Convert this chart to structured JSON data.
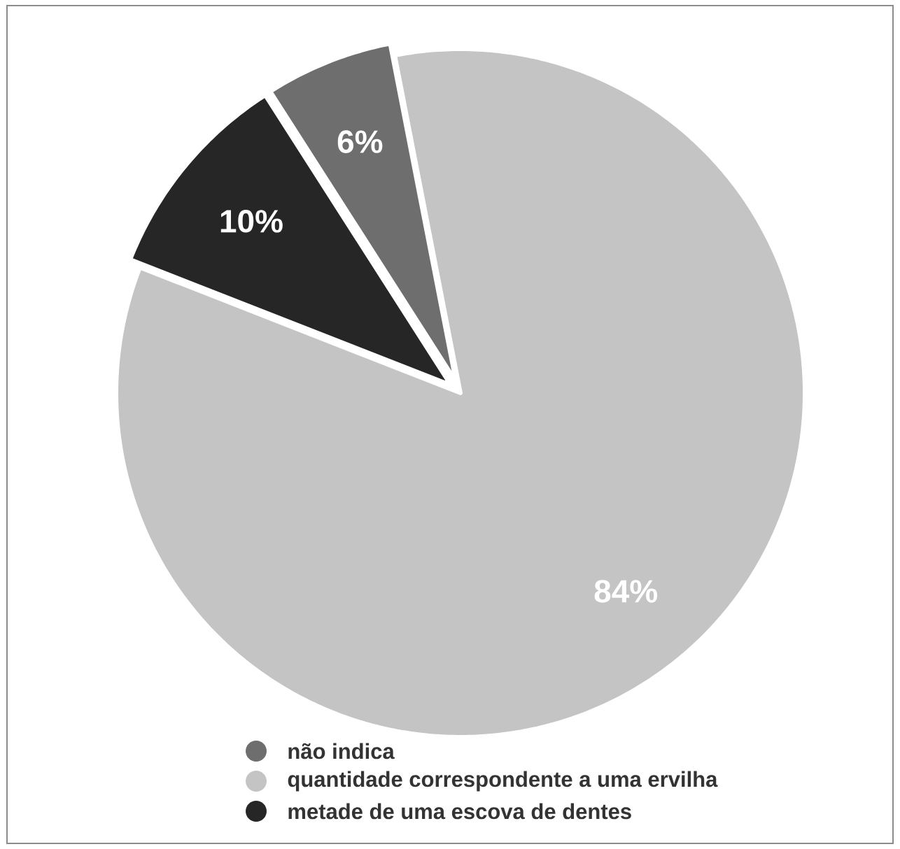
{
  "chart_data": {
    "type": "pie",
    "categories": [
      "não indica",
      "quantidade correspondente a uma ervilha",
      "metade de uma escova de dentes"
    ],
    "values": [
      6,
      84,
      10
    ],
    "colors": [
      "#6e6e6e",
      "#c4c4c4",
      "#262626"
    ],
    "value_labels": [
      "6%",
      "84%",
      "10%"
    ],
    "legend": "bottom"
  }
}
